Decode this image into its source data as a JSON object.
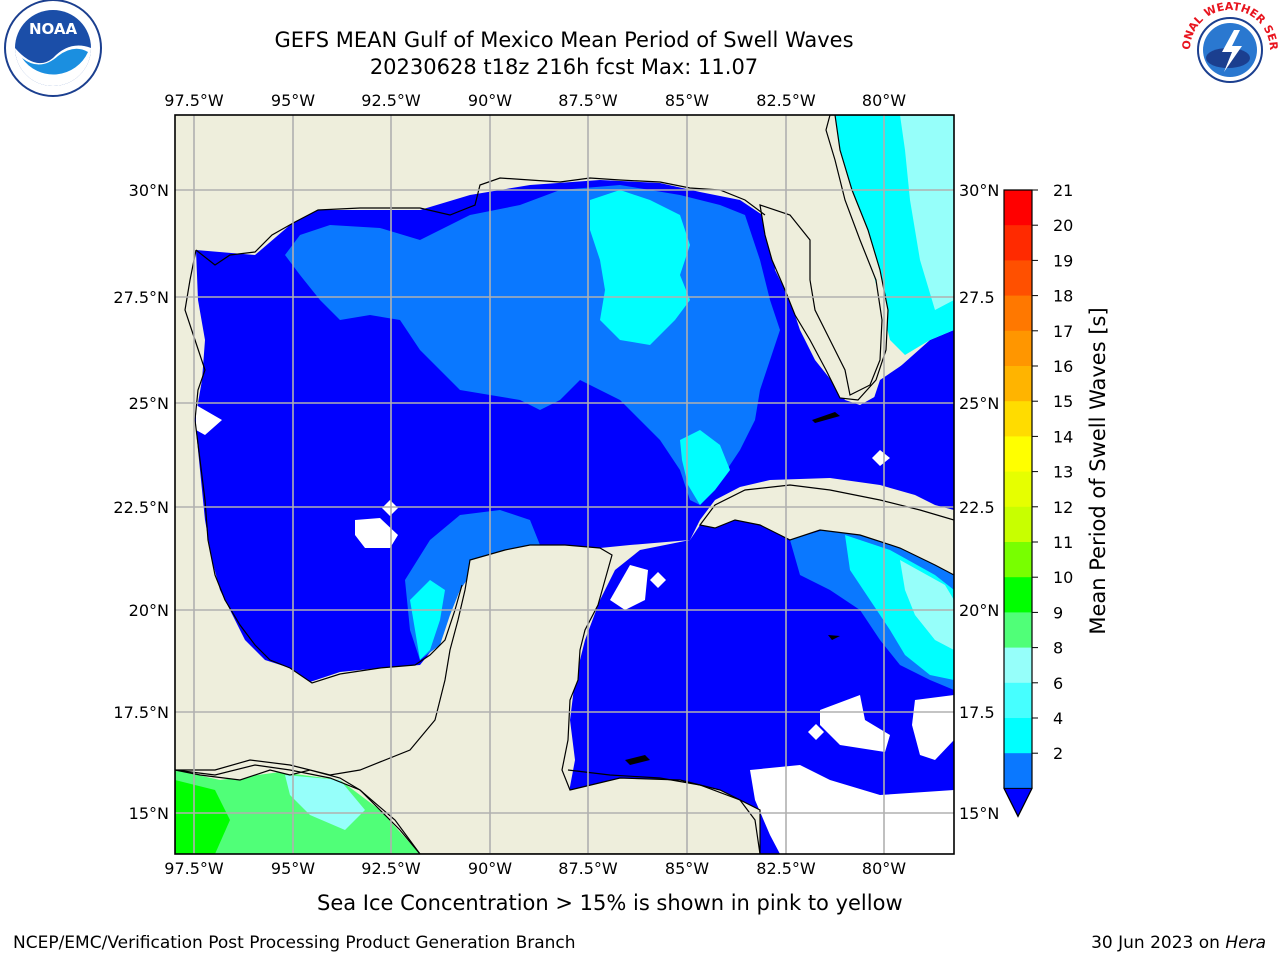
{
  "header": {
    "title_line1": "GEFS MEAN Gulf of Mexico Mean Period of Swell Waves",
    "title_line2": "20230628 t18z 216h fcst   Max: 11.07"
  },
  "logos": {
    "left": {
      "icon": "noaa-logo",
      "text": "NOAA"
    },
    "right": {
      "icon": "nws-logo",
      "text": "NATIONAL WEATHER SERVICE"
    }
  },
  "map": {
    "lon_labels": [
      "97.5°W",
      "95°W",
      "92.5°W",
      "90°W",
      "87.5°W",
      "85°W",
      "82.5°W",
      "80°W"
    ],
    "lat_labels_left": [
      "30°N",
      "27.5°N",
      "25°N",
      "22.5°N",
      "20°N",
      "17.5°N",
      "15°N"
    ],
    "lat_labels_right": [
      "30°N",
      "27.5",
      "25°N",
      "22.5",
      "20°N",
      "17.5",
      "15°N"
    ],
    "colors": {
      "land": "#eeeedc",
      "grid": "#b0b0b0",
      "period_2_4": "#0000ff",
      "period_4_6": "#0a78ff",
      "period_6_8": "#00ffff",
      "period_8_9": "#96fffa",
      "period_9_10": "#50ff78",
      "period_10_11": "#00ff00"
    }
  },
  "colorbar": {
    "label": "Mean Period of Swell Waves [s]",
    "ticks": [
      "21",
      "20",
      "19",
      "18",
      "17",
      "16",
      "15",
      "14",
      "13",
      "12",
      "11",
      "10",
      "9",
      "8",
      "6",
      "4",
      "2"
    ],
    "colors": [
      "#ff0000",
      "#ff2a00",
      "#ff5000",
      "#ff7800",
      "#ff9600",
      "#ffb400",
      "#ffdc00",
      "#ffff00",
      "#e6ff00",
      "#c8ff00",
      "#78ff00",
      "#00ff00",
      "#50ff78",
      "#96fffa",
      "#46ffff",
      "#00ffff",
      "#0a78ff"
    ],
    "extend_color": "#0000ff"
  },
  "footer": {
    "note": "Sea Ice Concentration > 15% is shown in pink to yellow",
    "credit_left": "NCEP/EMC/Verification Post Processing Product Generation Branch",
    "credit_date": "30 Jun 2023 on ",
    "credit_host": "Hera"
  }
}
